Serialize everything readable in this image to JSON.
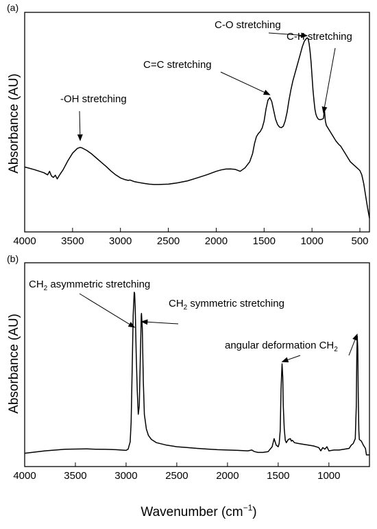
{
  "chart_data": [
    {
      "type": "line",
      "panel_label": "(a)",
      "title": "",
      "xlabel": "",
      "ylabel": "Absorbance (AU)",
      "xlim": [
        4000,
        400
      ],
      "x_reversed": true,
      "y_ticks_shown": false,
      "xticks": [
        4000,
        3500,
        3000,
        2500,
        2000,
        1500,
        1000,
        500
      ],
      "ylim": [
        0,
        1
      ],
      "grid": false,
      "series": [
        {
          "x": [
            4000,
            3900,
            3800,
            3760,
            3740,
            3720,
            3700,
            3680,
            3660,
            3640,
            3620,
            3600,
            3550,
            3500,
            3450,
            3420,
            3400,
            3350,
            3300,
            3250,
            3200,
            3150,
            3100,
            3050,
            3000,
            2950,
            2920,
            2900,
            2850,
            2800,
            2750,
            2700,
            2650,
            2600,
            2500,
            2400,
            2300,
            2200,
            2100,
            2000,
            1950,
            1900,
            1850,
            1800,
            1750,
            1700,
            1650,
            1620,
            1600,
            1580,
            1560,
            1540,
            1520,
            1500,
            1480,
            1460,
            1440,
            1420,
            1400,
            1380,
            1360,
            1340,
            1320,
            1300,
            1280,
            1260,
            1240,
            1220,
            1200,
            1180,
            1160,
            1140,
            1120,
            1100,
            1080,
            1060,
            1050,
            1040,
            1030,
            1020,
            1010,
            1000,
            990,
            980,
            970,
            960,
            950,
            940,
            930,
            920,
            910,
            900,
            890,
            880,
            870,
            860,
            850,
            800,
            750,
            720,
            700,
            650,
            600,
            550,
            500,
            480,
            460,
            440,
            420,
            400
          ],
          "y": [
            0.295,
            0.28,
            0.262,
            0.25,
            0.27,
            0.243,
            0.235,
            0.248,
            0.226,
            0.245,
            0.262,
            0.278,
            0.33,
            0.375,
            0.402,
            0.408,
            0.405,
            0.39,
            0.37,
            0.346,
            0.322,
            0.298,
            0.272,
            0.25,
            0.232,
            0.222,
            0.218,
            0.22,
            0.21,
            0.205,
            0.2,
            0.196,
            0.194,
            0.194,
            0.196,
            0.204,
            0.215,
            0.232,
            0.25,
            0.27,
            0.278,
            0.283,
            0.284,
            0.281,
            0.27,
            0.29,
            0.325,
            0.372,
            0.43,
            0.47,
            0.488,
            0.5,
            0.52,
            0.56,
            0.63,
            0.68,
            0.695,
            0.672,
            0.62,
            0.57,
            0.54,
            0.525,
            0.522,
            0.53,
            0.56,
            0.61,
            0.68,
            0.74,
            0.79,
            0.83,
            0.87,
            0.91,
            0.95,
            0.99,
            1.02,
            1.035,
            1.04,
            1.032,
            1.005,
            0.96,
            0.9,
            0.82,
            0.74,
            0.68,
            0.63,
            0.6,
            0.585,
            0.575,
            0.57,
            0.568,
            0.568,
            0.57,
            0.572,
            0.575,
            0.625,
            0.56,
            0.535,
            0.49,
            0.445,
            0.425,
            0.415,
            0.37,
            0.325,
            0.3,
            0.275,
            0.25,
            0.2,
            0.13,
            0.06,
            0.0
          ]
        }
      ],
      "annotations": [
        {
          "text": "-OH stretching",
          "x": 3420
        },
        {
          "text": "C=C stretching",
          "x": 1440
        },
        {
          "text": "C-O stretching",
          "x": 1050
        },
        {
          "text": "C-H stretching",
          "x": 880
        }
      ]
    },
    {
      "type": "line",
      "panel_label": "(b)",
      "title": "",
      "xlabel": "Wavenumber (cm",
      "xlabel_sup": "−1",
      "xlabel_end": ")",
      "ylabel": "Absorbance (AU)",
      "xlim": [
        4000,
        600
      ],
      "x_reversed": true,
      "y_ticks_shown": false,
      "xticks": [
        4000,
        3500,
        3000,
        2500,
        2000,
        1500,
        1000
      ],
      "ylim": [
        0,
        1
      ],
      "grid": false,
      "series": [
        {
          "x": [
            4000,
            3800,
            3600,
            3400,
            3300,
            3200,
            3100,
            3050,
            3000,
            2980,
            2960,
            2950,
            2940,
            2930,
            2920,
            2916,
            2910,
            2900,
            2890,
            2880,
            2870,
            2860,
            2850,
            2848,
            2840,
            2830,
            2820,
            2800,
            2780,
            2750,
            2700,
            2600,
            2500,
            2400,
            2300,
            2200,
            2100,
            2000,
            1900,
            1800,
            1760,
            1740,
            1720,
            1700,
            1650,
            1600,
            1560,
            1540,
            1530,
            1520,
            1500,
            1490,
            1480,
            1472,
            1466,
            1462,
            1455,
            1450,
            1440,
            1430,
            1420,
            1400,
            1380,
            1370,
            1360,
            1340,
            1300,
            1250,
            1200,
            1150,
            1100,
            1080,
            1060,
            1040,
            1020,
            1000,
            950,
            900,
            850,
            800,
            780,
            760,
            740,
            730,
            725,
            720,
            715,
            710,
            705,
            700,
            680,
            660,
            650,
            640,
            630,
            620,
            600
          ],
          "y": [
            0.01,
            0.025,
            0.035,
            0.037,
            0.035,
            0.034,
            0.032,
            0.03,
            0.028,
            0.035,
            0.08,
            0.2,
            0.52,
            0.86,
            1.0,
            0.995,
            0.9,
            0.62,
            0.4,
            0.25,
            0.3,
            0.6,
            0.86,
            0.87,
            0.78,
            0.45,
            0.25,
            0.16,
            0.12,
            0.095,
            0.075,
            0.06,
            0.05,
            0.045,
            0.04,
            0.036,
            0.032,
            0.03,
            0.028,
            0.025,
            0.03,
            0.022,
            0.018,
            0.015,
            0.015,
            0.02,
            0.05,
            0.1,
            0.08,
            0.06,
            0.05,
            0.07,
            0.15,
            0.4,
            0.5,
            0.56,
            0.48,
            0.3,
            0.16,
            0.09,
            0.075,
            0.095,
            0.1,
            0.085,
            0.09,
            0.075,
            0.07,
            0.065,
            0.06,
            0.055,
            0.045,
            0.025,
            0.045,
            0.035,
            0.05,
            0.025,
            0.03,
            0.03,
            0.035,
            0.04,
            0.06,
            0.07,
            0.1,
            0.3,
            0.6,
            0.73,
            0.65,
            0.35,
            0.15,
            0.095,
            0.085,
            0.06,
            0.05,
            0.04,
            0.0,
            0.0,
            0.0
          ]
        }
      ],
      "annotations": [
        {
          "text": "CH",
          "sub": "2",
          "tail": " asymmetric stretching",
          "x": 2916
        },
        {
          "text": "CH",
          "sub": "2",
          "tail": " symmetric stretching",
          "x": 2848
        },
        {
          "text": "angular deformation CH",
          "sub": "2",
          "tail": "",
          "x": 1462
        }
      ]
    }
  ]
}
